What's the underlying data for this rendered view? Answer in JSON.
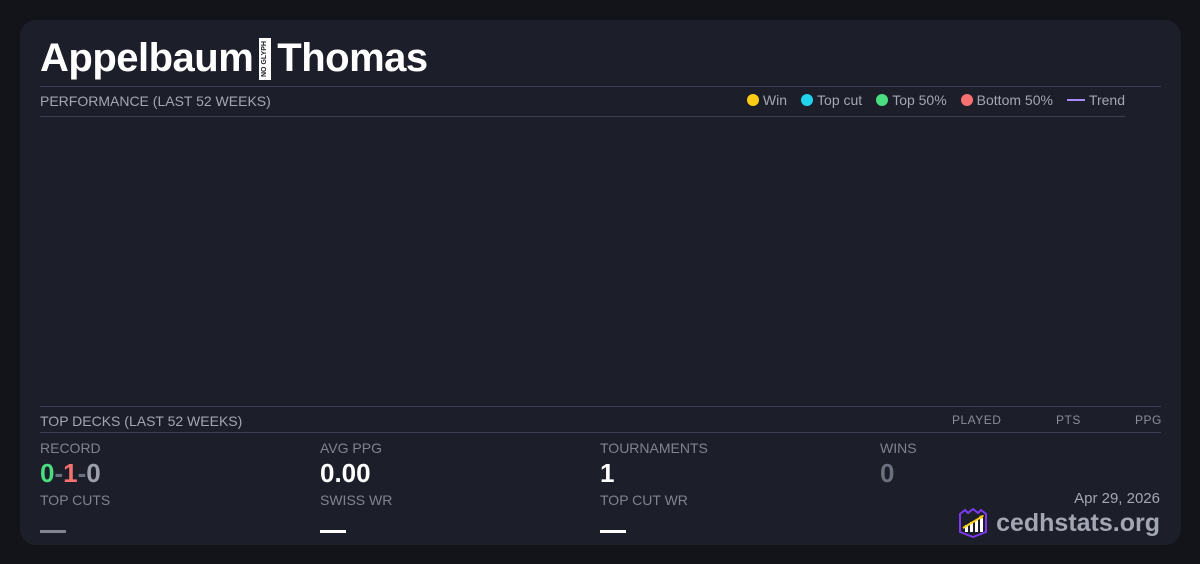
{
  "player": {
    "first": "Appelbaum",
    "missing_glyph": "NO GLYPH",
    "last": "Thomas"
  },
  "performance": {
    "title": "PERFORMANCE (LAST 52 WEEKS)",
    "legend": [
      {
        "label": "Win",
        "color": "#facc15"
      },
      {
        "label": "Top cut",
        "color": "#22d3ee"
      },
      {
        "label": "Top 50%",
        "color": "#4ade80"
      },
      {
        "label": "Bottom 50%",
        "color": "#f87171"
      },
      {
        "label": "Trend",
        "color": "#a78bfa"
      }
    ]
  },
  "top_decks": {
    "title": "TOP DECKS (LAST 52 WEEKS)",
    "columns": [
      "PLAYED",
      "PTS",
      "PPG"
    ]
  },
  "stats": {
    "record": {
      "label": "RECORD",
      "wins": "0",
      "losses": "1",
      "draws": "0",
      "sep": "-"
    },
    "avg_ppg": {
      "label": "AVG PPG",
      "value": "0.00"
    },
    "tournaments": {
      "label": "TOURNAMENTS",
      "value": "1"
    },
    "wins": {
      "label": "WINS",
      "value": "0"
    },
    "top_cuts": {
      "label": "TOP CUTS"
    },
    "swiss_wr": {
      "label": "SWISS WR"
    },
    "top_cut_wr": {
      "label": "TOP CUT WR"
    }
  },
  "footer": {
    "date": "Apr 29, 2026",
    "brand": "cedhstats.org"
  }
}
